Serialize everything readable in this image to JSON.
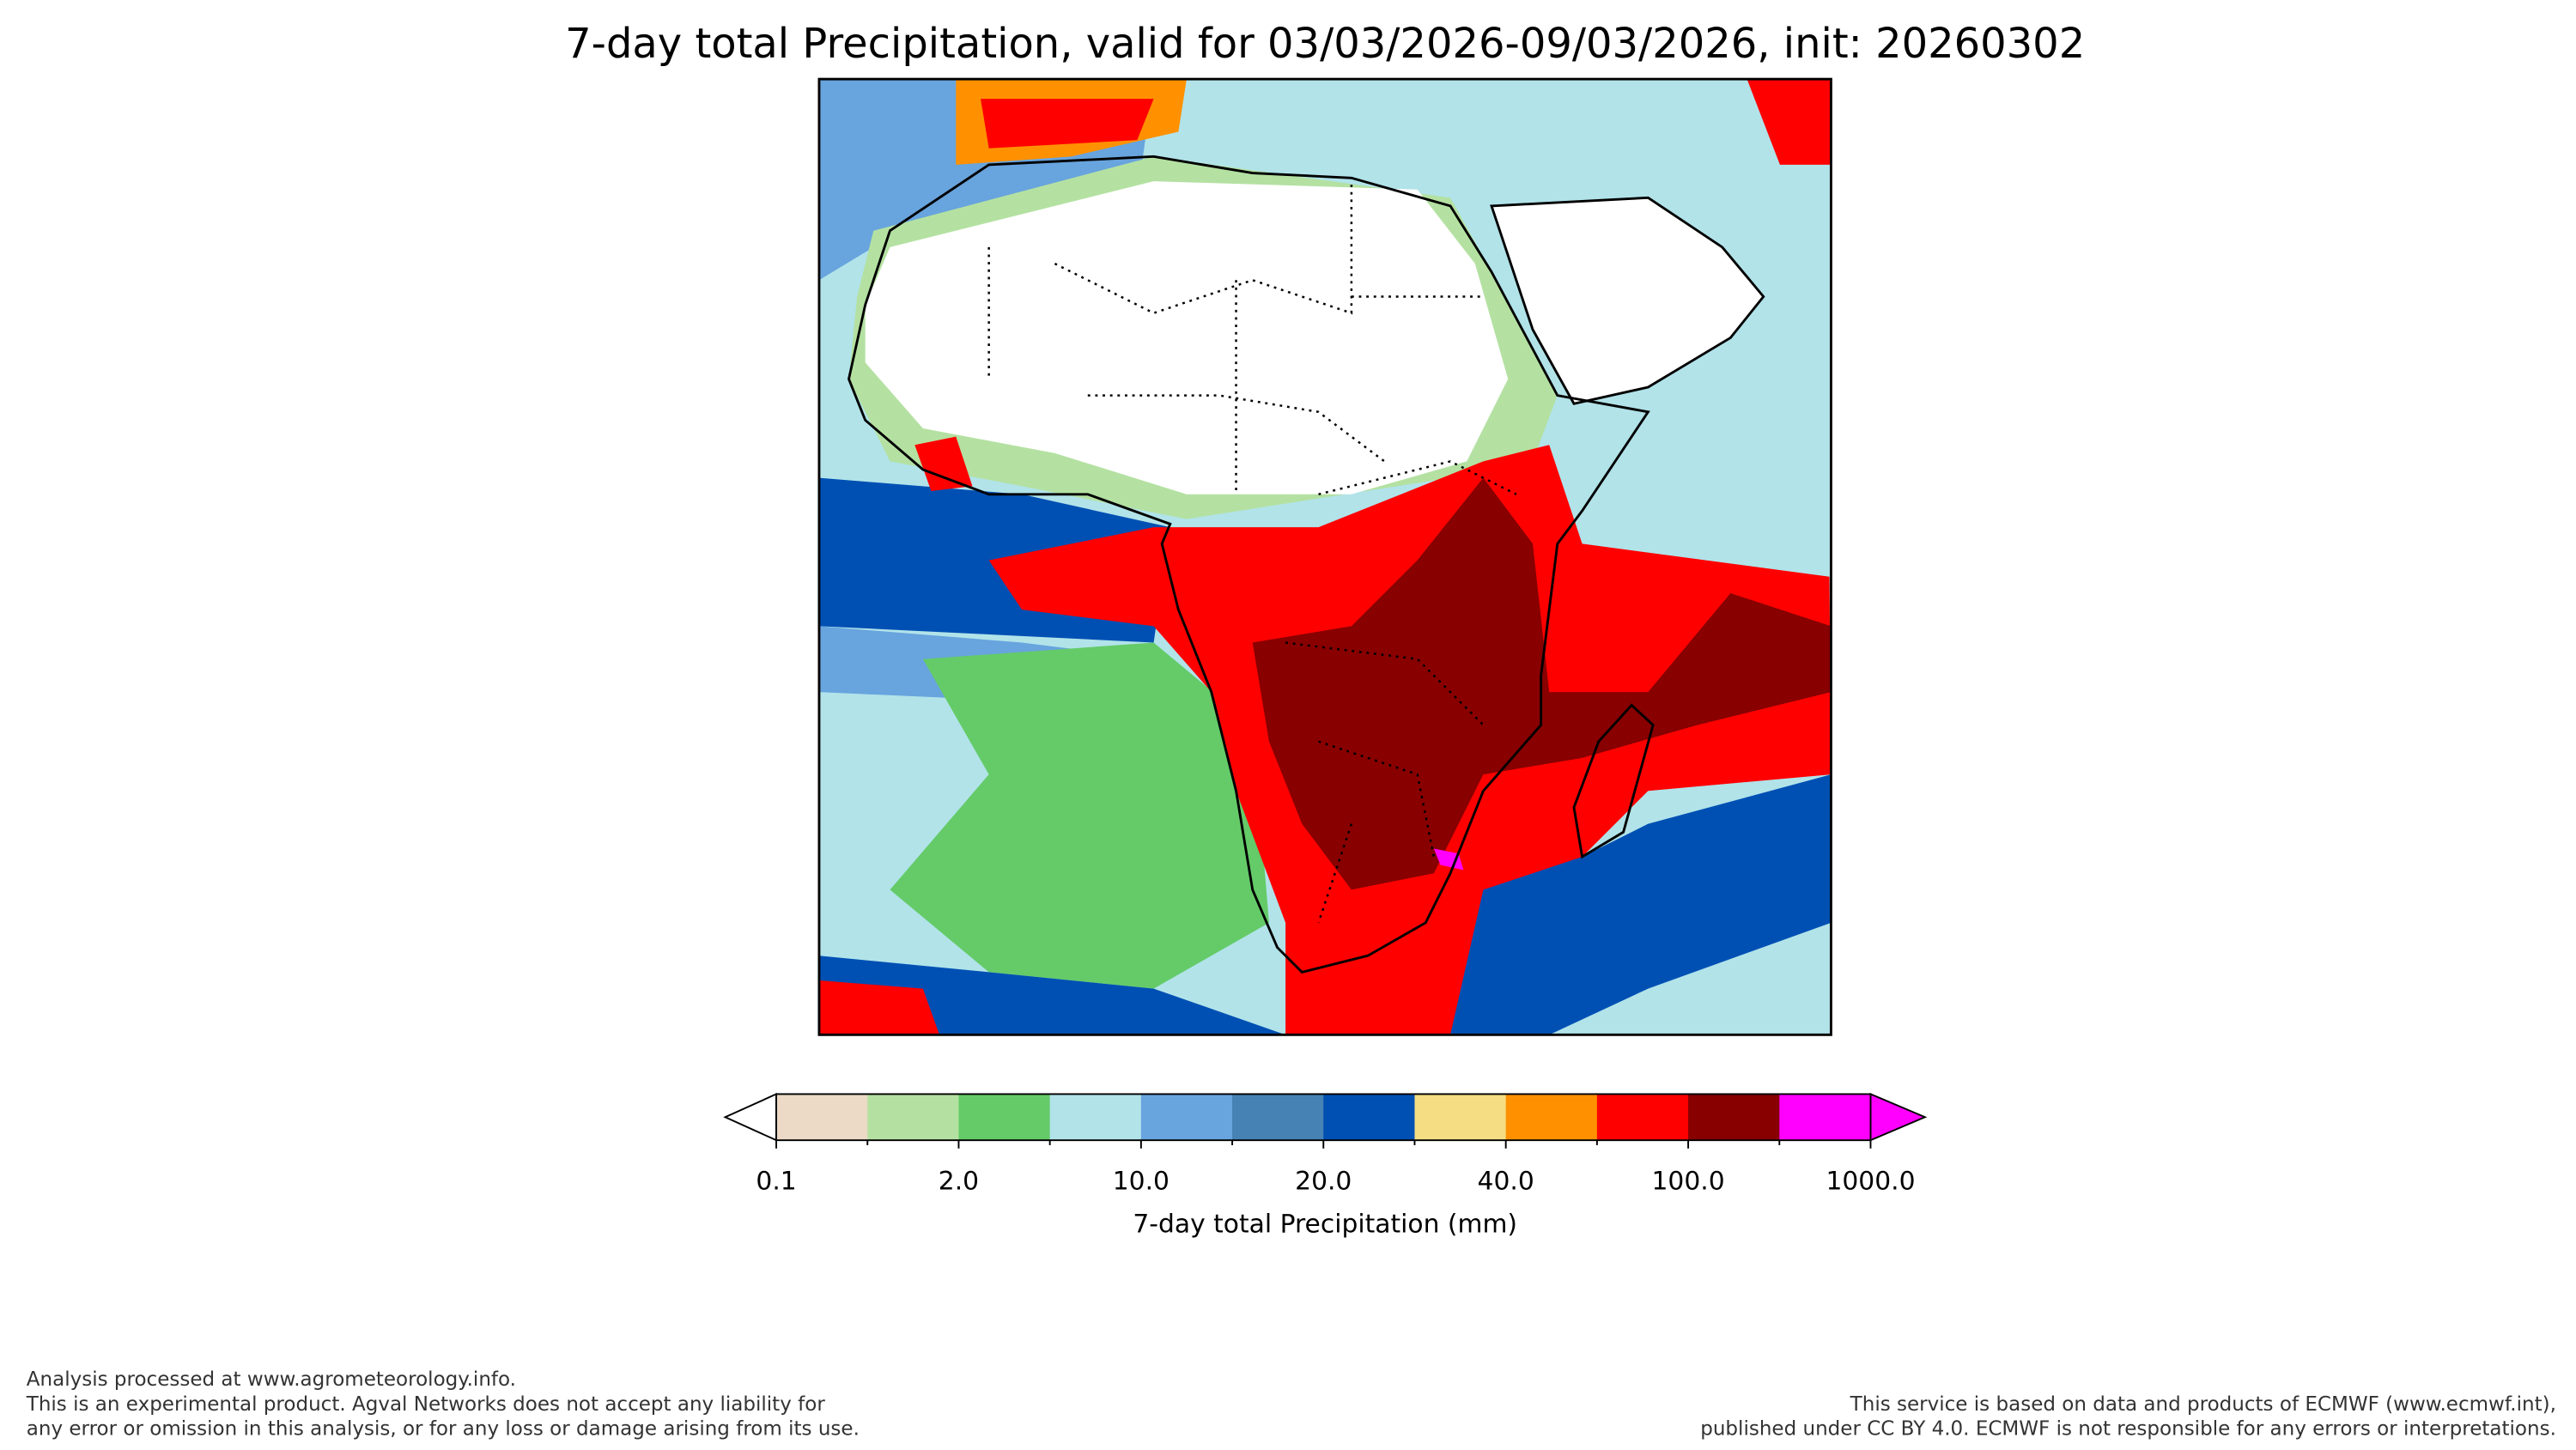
{
  "header": {
    "title": "7-day total Precipitation, valid for 03/03/2026-09/03/2026, init: 20260302"
  },
  "colorbar": {
    "colors": [
      "#ecd9c6",
      "#b4e1a2",
      "#64cb68",
      "#b1e3e9",
      "#68a4de",
      "#4682b4",
      "#0050b4",
      "#f5dd83",
      "#ff9100",
      "#ff0000",
      "#880000",
      "#ff00ff"
    ],
    "under_color": "#ffffff",
    "over_color": "#ff00ff",
    "ticks": [
      "0.1",
      "2.0",
      "10.0",
      "20.0",
      "40.0",
      "100.0",
      "1000.0"
    ],
    "label": "7-day total Precipitation (mm)"
  },
  "footer": {
    "left": [
      "Analysis processed at www.agrometeorology.info.",
      "This is an experimental product. Agval Networks does not accept any liability for",
      "any error or omission in this analysis, or for any loss or damage arising from its use."
    ],
    "right": [
      "This service is based on data and products of ECMWF (www.ecmwf.int),",
      "published under CC BY 4.0. ECMWF is not responsible for any errors or interpretations."
    ]
  }
}
